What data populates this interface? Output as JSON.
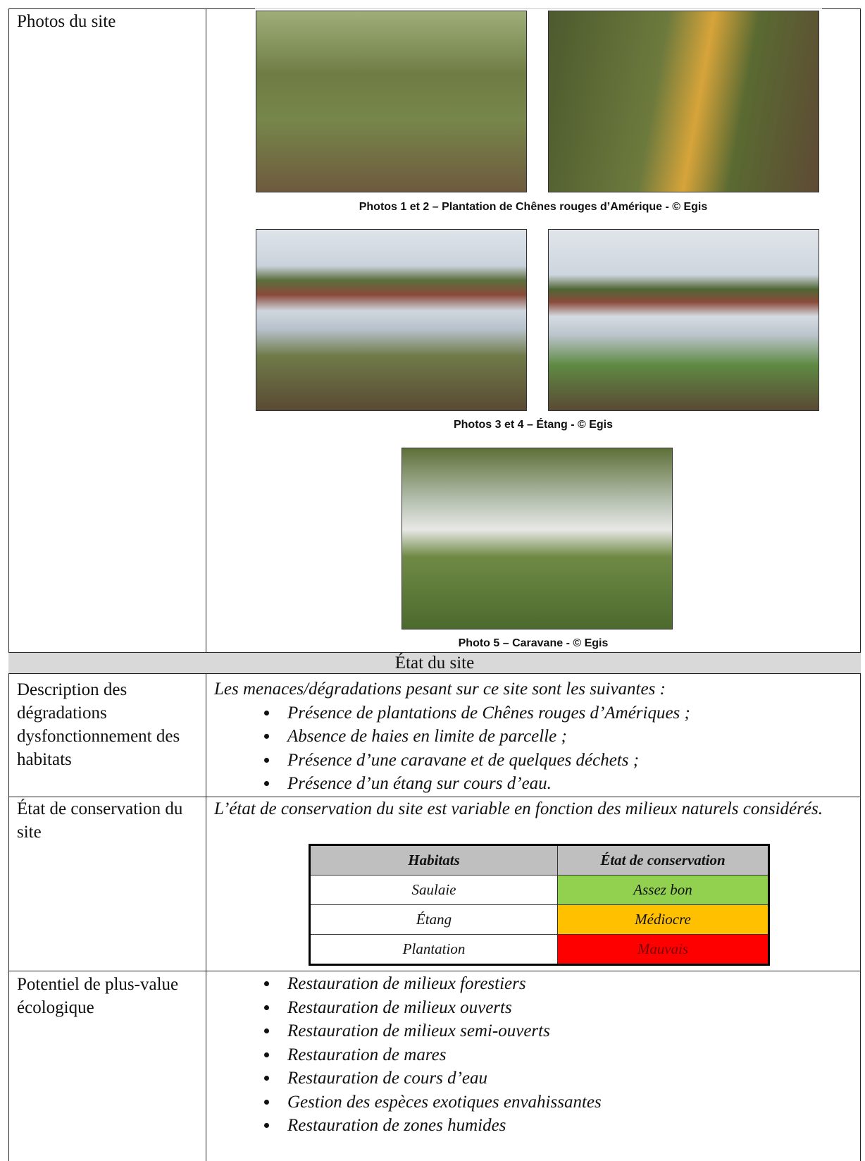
{
  "photos": {
    "label": "Photos du site",
    "captions": [
      "Photos 1 et 2 – Plantation de Chênes rouges d’Amérique - © Egis",
      "Photos 3 et 4 – Étang - © Egis",
      "Photo 5 – Caravane - © Egis"
    ]
  },
  "section_header": "État du site",
  "degradations": {
    "label": "Description des dégradations dysfonctionnement des habitats",
    "intro": "Les menaces/dégradations pesant sur ce site sont les suivantes :",
    "items": [
      "Présence de plantations de Chênes rouges d’Amériques ;",
      "Absence de haies en limite de parcelle ;",
      "Présence d’une caravane et de quelques déchets ;",
      "Présence d’un étang sur cours d’eau."
    ]
  },
  "conservation": {
    "label": "État de conservation du site",
    "intro": "L’état de conservation du site est variable en fonction des milieux naturels considérés.",
    "table": {
      "headers": [
        "Habitats",
        "État de conservation"
      ],
      "rows": [
        [
          "Saulaie",
          "Assez bon"
        ],
        [
          "Étang",
          "Médiocre"
        ],
        [
          "Plantation",
          "Mauvais"
        ]
      ]
    }
  },
  "potentiel": {
    "label": "Potentiel de plus-value écologique",
    "items": [
      "Restauration de milieux forestiers",
      "Restauration de milieux ouverts",
      "Restauration de milieux semi-ouverts",
      "Restauration de mares",
      "Restauration de cours d’eau",
      "Gestion des espèces exotiques envahissantes",
      "Restauration de zones humides"
    ]
  }
}
